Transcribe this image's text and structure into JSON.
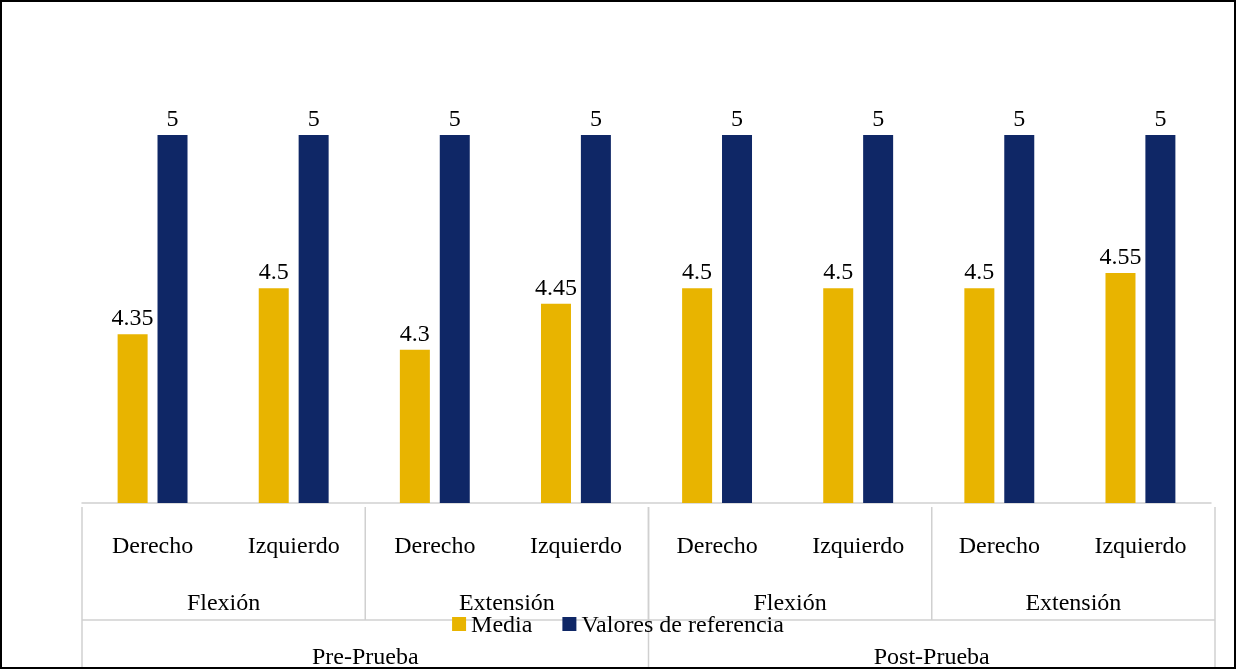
{
  "chart_data": {
    "type": "bar",
    "categories": [
      "Derecho",
      "Izquierdo",
      "Derecho",
      "Izquierdo",
      "Derecho",
      "Izquierdo",
      "Derecho",
      "Izquierdo"
    ],
    "series": [
      {
        "name": "Media",
        "color": "#e8b400",
        "values": [
          4.35,
          4.5,
          4.3,
          4.45,
          4.5,
          4.5,
          4.5,
          4.55
        ]
      },
      {
        "name": "Valores de referencia",
        "color": "#0f2766",
        "values": [
          5,
          5,
          5,
          5,
          5,
          5,
          5,
          5
        ]
      }
    ],
    "annotations": [
      "Flexión",
      "Extensión",
      "Flexión",
      "Extensión",
      "Pre-Prueba",
      "Post-Prueba"
    ],
    "ylim": [
      3.8,
      5
    ],
    "data_labels": true,
    "legend": "bottom",
    "tick_labels": "x"
  }
}
